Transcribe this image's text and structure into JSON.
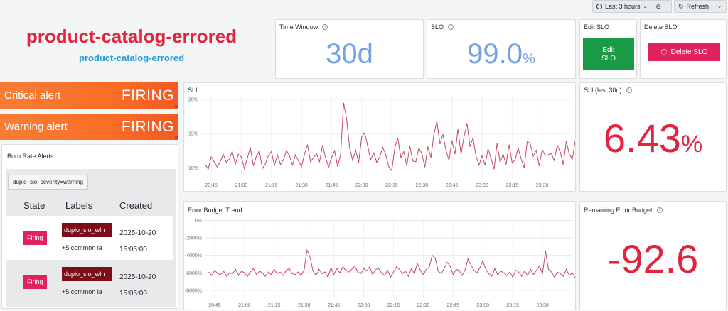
{
  "toolbar": {
    "time_range_label": "Last 3 hours",
    "refresh_label": "Refresh"
  },
  "header": {
    "title": "product-catalog-errored",
    "subtitle": "product-catalog-errored"
  },
  "time_window": {
    "title": "Time Window",
    "value": "30d"
  },
  "slo": {
    "title": "SLO",
    "value": "99.0",
    "unit": "%"
  },
  "edit_slo": {
    "title": "Edit SLO",
    "button_label": "Edit SLO"
  },
  "delete_slo": {
    "title": "Delete SLO",
    "button_label": "Delete SLO"
  },
  "alerts": {
    "critical": {
      "label": "Critical alert",
      "status": "FIRING"
    },
    "warning": {
      "label": "Warning alert",
      "status": "FIRING"
    }
  },
  "burn_rate": {
    "title": "Burn Rate Alerts",
    "filter_chip": "duplo_slo_severity=warning",
    "columns": [
      "State",
      "Labels",
      "Created"
    ],
    "rows": [
      {
        "state": "Firing",
        "label_chip": "duplo_slo_wIn",
        "label_extra": "+5 common la",
        "date": "2025-10-20",
        "time": "15:05:00"
      },
      {
        "state": "Firing",
        "label_chip": "duplo_slo_wIn",
        "label_extra": "+5 common la",
        "date": "2025-10-20",
        "time": "15:05:00"
      }
    ]
  },
  "sli_current": {
    "title": "SLI (last 30d)",
    "value": "6.43",
    "unit": "%"
  },
  "remaining_budget": {
    "title": "Remaining Error Budget",
    "value": "-92.6"
  },
  "colors": {
    "accent_red": "#e0253f",
    "stat_blue": "#73a2e8",
    "subtitle_blue": "#1f9bd7",
    "line": "#c4485f",
    "alert_orange": "#f77d37",
    "firing_pink": "#e0235d",
    "label_maroon": "#7a0f1a",
    "edit_green": "#1b9a46"
  },
  "chart_data": [
    {
      "type": "line",
      "title": "SLI",
      "x_ticks": [
        "20:45",
        "21:00",
        "21:15",
        "21:30",
        "21:45",
        "22:00",
        "22:15",
        "22:30",
        "22:45",
        "23:00",
        "23:15",
        "23:30"
      ],
      "y_ticks": [
        "20%",
        "15%",
        "10%"
      ],
      "ylim": [
        8.5,
        20.5
      ],
      "xlim": [
        "20:40",
        "23:45"
      ],
      "x_step_minutes": 1.5,
      "grid": true,
      "values": [
        10.5,
        9.8,
        11.6,
        10.9,
        10.1,
        10.9,
        12.0,
        10.8,
        11.3,
        12.4,
        10.5,
        12.0,
        11.6,
        9.9,
        11.4,
        13.0,
        10.3,
        11.7,
        12.5,
        9.9,
        10.6,
        11.8,
        12.4,
        10.3,
        11.9,
        10.5,
        11.2,
        12.5,
        11.8,
        10.4,
        11.9,
        11.0,
        10.2,
        12.0,
        13.4,
        10.9,
        11.5,
        12.1,
        10.9,
        13.3,
        11.5,
        10.1,
        11.5,
        12.5,
        10.2,
        11.9,
        19.5,
        17.1,
        12.9,
        11.1,
        12.6,
        10.8,
        14.5,
        15.1,
        13.2,
        11.2,
        12.2,
        10.8,
        11.6,
        13.0,
        11.9,
        10.2,
        9.6,
        12.9,
        14.4,
        11.5,
        12.4,
        10.3,
        13.2,
        11.0,
        10.9,
        12.9,
        12.1,
        10.1,
        13.1,
        11.5,
        14.9,
        16.8,
        13.5,
        14.9,
        12.6,
        11.1,
        14.0,
        12.0,
        15.7,
        12.0,
        14.5,
        16.5,
        13.1,
        14.4,
        11.7,
        10.4,
        11.8,
        10.4,
        12.8,
        11.4,
        9.8,
        13.6,
        10.8,
        12.0,
        10.5,
        13.4,
        10.7,
        11.2,
        12.9,
        11.3,
        10.0,
        13.8,
        13.6,
        11.7,
        12.6,
        10.3,
        12.7,
        11.8,
        11.9,
        12.1,
        11.1,
        13.3,
        12.3,
        10.5,
        13.9,
        12.0,
        11.3,
        14.0,
        11.8,
        14.1,
        13.3,
        11.8,
        10.6,
        13.9,
        15.2,
        17.0,
        19.7,
        15.9,
        13.2,
        11.6,
        13.7,
        12.5,
        10.6,
        13.6,
        11.4,
        12.5,
        9.3,
        10.9,
        13.4,
        13.2,
        12.5,
        11.9,
        10.8,
        13.4,
        13.0,
        13.6,
        11.4,
        11.8,
        10.3
      ]
    },
    {
      "type": "line",
      "title": "Error Budget Trend",
      "x_ticks": [
        "20:45",
        "21:00",
        "21:15",
        "21:30",
        "21:45",
        "22:00",
        "22:15",
        "22:30",
        "22:45",
        "23:00",
        "23:15",
        "23:30"
      ],
      "y_ticks": [
        "0%",
        "-2000%",
        "-4000%",
        "-6000%",
        "-8000%"
      ],
      "ylim": [
        -8900,
        200
      ],
      "xlim": [
        "20:40",
        "23:45"
      ],
      "x_step_minutes": 1.5,
      "grid": true,
      "values": [
        -5900,
        -6300,
        -5700,
        -6100,
        -6200,
        -5800,
        -6400,
        -6000,
        -6100,
        -5600,
        -6300,
        -5800,
        -6000,
        -6400,
        -5900,
        -5500,
        -6200,
        -5800,
        -6000,
        -6400,
        -5900,
        -6200,
        -5600,
        -6100,
        -5900,
        -6300,
        -5700,
        -5500,
        -6100,
        -6200,
        -5900,
        -6300,
        -5700,
        -3400,
        -4200,
        -5800,
        -6300,
        -5600,
        -6100,
        -5900,
        -6500,
        -5400,
        -6200,
        -5500,
        -6000,
        -5300,
        -5700,
        -5900,
        -5600,
        -5200,
        -5900,
        -6100,
        -5500,
        -5800,
        -5300,
        -6200,
        -5600,
        -5500,
        -6000,
        -6300,
        -5700,
        -6500,
        -5900,
        -5300,
        -5600,
        -6100,
        -5800,
        -6400,
        -5500,
        -6100,
        -4900,
        -5700,
        -6200,
        -5600,
        -5300,
        -4000,
        -4300,
        -5800,
        -6100,
        -5500,
        -4800,
        -5200,
        -6200,
        -5600,
        -5700,
        -6300,
        -5700,
        -4400,
        -5100,
        -5700,
        -6000,
        -5400,
        -4600,
        -5600,
        -6100,
        -6400,
        -5500,
        -6200,
        -5800,
        -6000,
        -6300,
        -5900,
        -6500,
        -5700,
        -5900,
        -6400,
        -5800,
        -6300,
        -5600,
        -6200,
        -5700,
        -5200,
        -6100,
        -3500,
        -5600,
        -5900,
        -6500,
        -5900,
        -6100,
        -6400,
        -5600,
        -6300,
        -6000,
        -6600,
        -5800,
        -5300,
        -6200,
        -5700,
        -6500,
        -5900,
        -6100,
        -6600,
        -6000,
        -6400,
        -5800,
        -6100,
        -6500,
        -6300,
        -5900,
        -6700,
        -6200,
        -6400,
        -5900,
        -6300,
        -6600,
        -6400,
        -6200,
        -6500,
        -6600,
        -6300,
        -6600,
        -6400,
        -6700,
        -6400,
        -6700,
        -6500,
        -6800,
        -6300,
        -6600
      ]
    }
  ]
}
